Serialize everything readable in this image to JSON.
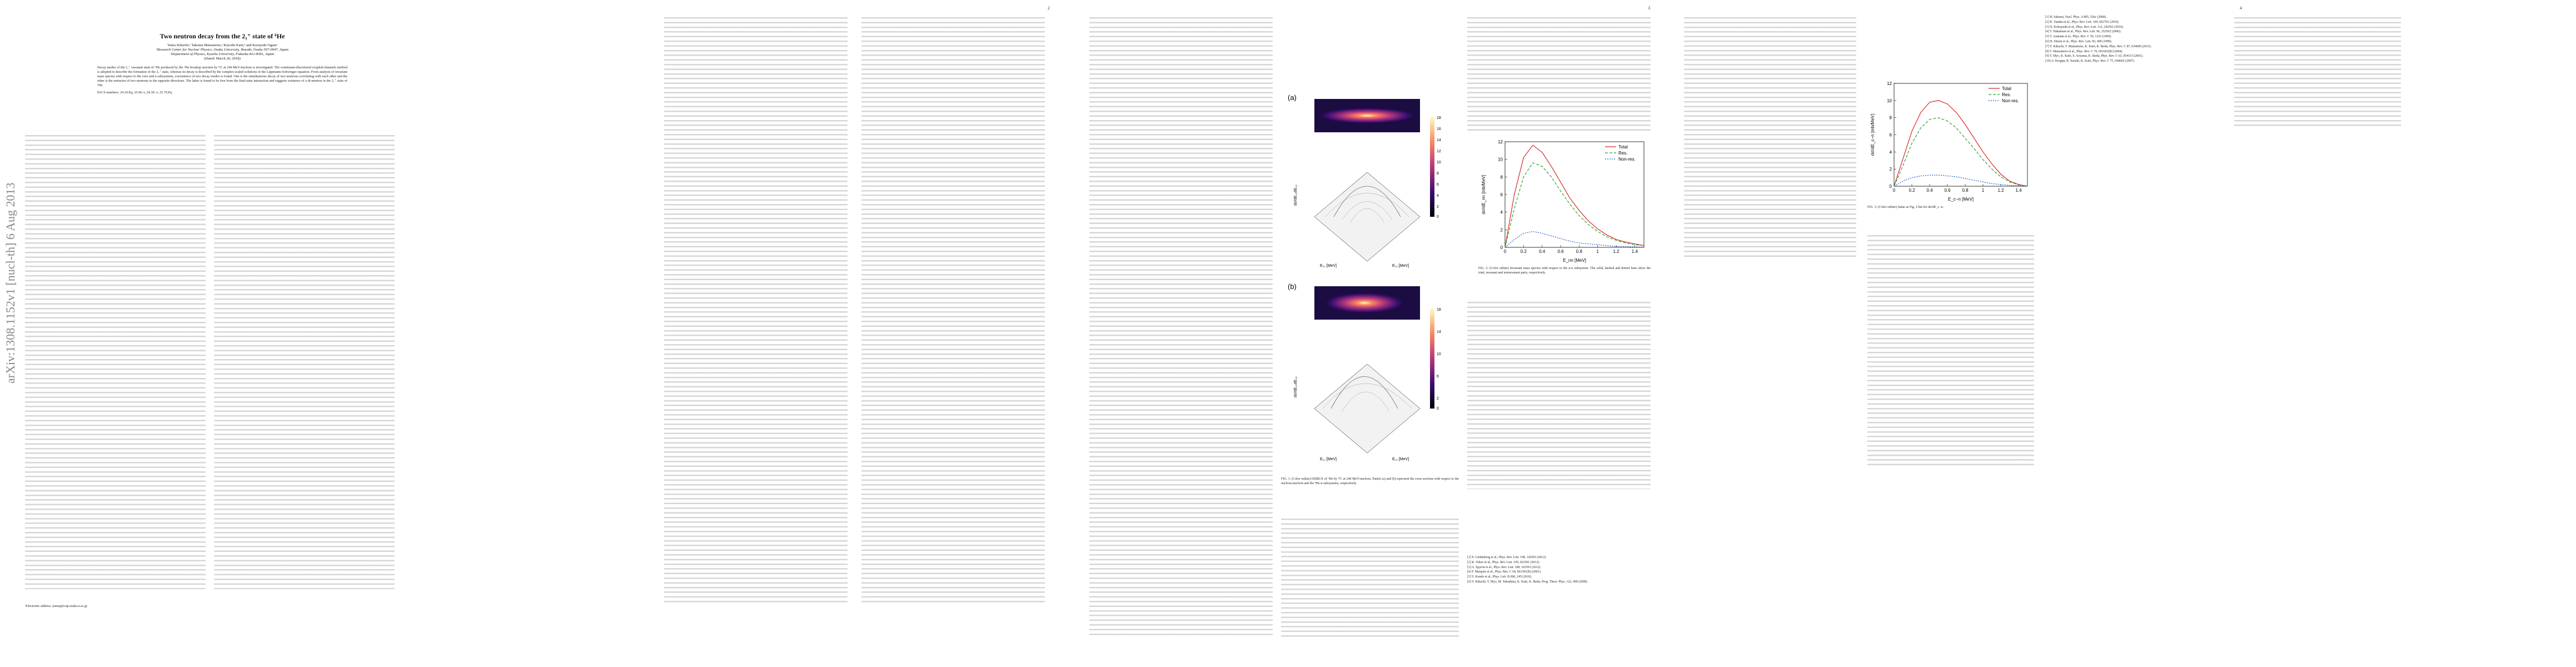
{
  "arxiv_stamp": "arXiv:1308.1152v1  [nucl-th]  6 Aug 2013",
  "page_numbers": [
    "2",
    "3",
    "4"
  ],
  "title": "Two neutron decay from the 2₁⁺ state of ⁶He",
  "authors": "Yuma Kikuchi,¹ Takuma Matsumoto,² Kiyoshi Katō,³ and Kazuyuki Ogata¹",
  "affiliations": [
    "¹Research Center for Nuclear Physics, Osaka University, Ibaraki, Osaka 567-0047, Japan",
    "²Department of Physics, Kyushu University, Fukuoka 812-8581, Japan",
    "(Dated: March 20, 2018)"
  ],
  "abstract": "Decay modes of the 2₁⁺ resonant state of ⁶He produced by the ⁶He breakup reaction by ¹²C at 240 MeV/nucleon is investigated. The continuum-discretized coupled-channels method is adopted to describe the formation of the 2₁⁺ state, whereas its decay is described by the complex-scaled solutions of the Lippmann-Schwinger equation. From analysis of invariant mass spectra with respect to the core and n subsystems, coexistence of two decay modes is found. One is the simultaneous decay of two neutrons correlating with each other and the other is the emission of two neutrons to the opposite directions. The latter is found to be free from the final-state interaction and suggests existence of a di-neutron in the 2₁⁺ state of ⁶He.",
  "pacs": "PACS numbers: 24.10.Eq, 25.60.-t, 24.30.-v, 25.70.Pq",
  "footnote": "¹Electronic address: yuma@rcnp.osaka-u.ac.jp",
  "fig1": {
    "panel_a": "(a)",
    "panel_b": "(b)",
    "colorbar_a": [
      "18",
      "16",
      "14",
      "12",
      "10",
      "8",
      "6",
      "4",
      "2",
      "0"
    ],
    "colorbar_b": [
      "18",
      "16",
      "14",
      "12",
      "10",
      "8",
      "6",
      "4",
      "2",
      "0"
    ],
    "zlabel": "dσ/dE₁₂dE₁₃",
    "xlabel": "E₁₂ [MeV]",
    "ylabel": "E₁₃ [MeV]",
    "caption": "FIG. 1: (Color online) DDBUX of ⁶He by ¹²C at 240 MeV/nucleon. Panels (a) and (b) represent the cross sections with respect to the nucleon-nucleon and the ⁴He-n subsystems, respectively."
  },
  "fig2": {
    "ylabel": "dσ/dE_nn [mb/MeV]",
    "xlabel": "E_nn [MeV]",
    "legend": [
      "Total",
      "Res.",
      "Non-res."
    ],
    "caption": "FIG. 2: (Color online) Invariant mass spectra with respect to the n-n subsystem. The solid, dashed and dotted lines show the total, resonant and nonresonant parts, respectively.",
    "xticks": [
      "0",
      "0.2",
      "0.4",
      "0.6",
      "0.8",
      "1",
      "1.2",
      "1.4"
    ],
    "yticks": [
      "0",
      "2",
      "4",
      "6",
      "8",
      "10",
      "12"
    ]
  },
  "fig3": {
    "ylabel": "dσ/dE_c−n [mb/MeV]",
    "xlabel": "E_c−n [MeV]",
    "legend": [
      "Total",
      "Res.",
      "Non-res."
    ],
    "caption": "FIG. 3: (Color online) Same as Fig. 2 but for dσ/dE_c−n.",
    "xticks": [
      "0",
      "0.2",
      "0.4",
      "0.6",
      "0.8",
      "1",
      "1.2",
      "1.4"
    ],
    "yticks": [
      "0",
      "2",
      "4",
      "6",
      "8",
      "10",
      "12"
    ]
  },
  "colors": {
    "total": "#d62728",
    "res": "#2ca02c",
    "nonres": "#1f5fbf",
    "text": "#222222"
  },
  "chart_data": [
    {
      "type": "line",
      "title": "",
      "xlabel": "E_nn [MeV]",
      "ylabel": "dσ/dE_nn [mb/MeV]",
      "xlim": [
        0,
        1.5
      ],
      "ylim": [
        0,
        12
      ],
      "x": [
        0,
        0.1,
        0.2,
        0.3,
        0.4,
        0.5,
        0.6,
        0.7,
        0.8,
        0.9,
        1.0,
        1.1,
        1.2,
        1.3,
        1.4,
        1.5
      ],
      "series": [
        {
          "name": "Total",
          "values": [
            0,
            6.0,
            10.2,
            11.6,
            10.8,
            9.2,
            7.4,
            5.6,
            4.2,
            3.0,
            2.1,
            1.4,
            0.9,
            0.6,
            0.4,
            0.2
          ]
        },
        {
          "name": "Res.",
          "values": [
            0,
            4.4,
            8.0,
            9.6,
            9.2,
            8.0,
            6.4,
            4.9,
            3.6,
            2.6,
            1.8,
            1.2,
            0.8,
            0.5,
            0.3,
            0.2
          ]
        },
        {
          "name": "Non-res.",
          "values": [
            0,
            0.9,
            1.6,
            1.8,
            1.6,
            1.3,
            1.0,
            0.7,
            0.5,
            0.4,
            0.3,
            0.2,
            0.1,
            0.1,
            0.05,
            0.03
          ]
        }
      ]
    },
    {
      "type": "line",
      "title": "",
      "xlabel": "E_c−n [MeV]",
      "ylabel": "dσ/dE_c−n [mb/MeV]",
      "xlim": [
        0,
        1.5
      ],
      "ylim": [
        0,
        12
      ],
      "x": [
        0,
        0.1,
        0.2,
        0.3,
        0.4,
        0.5,
        0.6,
        0.7,
        0.8,
        0.9,
        1.0,
        1.1,
        1.2,
        1.3,
        1.4,
        1.5
      ],
      "series": [
        {
          "name": "Total",
          "values": [
            0,
            3.2,
            6.4,
            8.6,
            9.8,
            10.0,
            9.6,
            8.6,
            7.2,
            5.6,
            4.0,
            2.6,
            1.4,
            0.6,
            0.2,
            0
          ]
        },
        {
          "name": "Res.",
          "values": [
            0,
            2.4,
            5.0,
            6.8,
            7.8,
            8.0,
            7.6,
            6.8,
            5.6,
            4.4,
            3.1,
            2.0,
            1.1,
            0.5,
            0.15,
            0
          ]
        },
        {
          "name": "Non-res.",
          "values": [
            0,
            0.6,
            1.0,
            1.2,
            1.3,
            1.3,
            1.2,
            1.1,
            0.9,
            0.7,
            0.5,
            0.3,
            0.2,
            0.1,
            0.05,
            0
          ]
        }
      ]
    }
  ],
  "refs_page4_right": [
    "[1] H. Sakurai, Nucl. Phys. A 805, 526c (2008).",
    "[2] K. Tanaka et al., Phys. Rev. Lett. 104, 062701 (2010).",
    "[3] N. Kobayashi et al., Phys. Rev. Lett. 112, 242501 (2014).",
    "[4] T. Nakamura et al., Phys. Rev. Lett. 96, 252502 (2006).",
    "[5] T. Aumann et al., Phys. Rev. C 59, 1252 (1999).",
    "[6] H. Simon et al., Phys. Rev. Lett. 83, 496 (1999).",
    "[7] Y. Kikuchi, T. Matsumoto, K. Katō, K. Ikeda, Phys. Rev. C 87, 034606 (2013).",
    "[8] T. Matsumoto et al., Phys. Rev. C 70, 061601(R) (2004).",
    "[9] T. Myo, K. Katō, S. Aoyama, K. Ikeda, Phys. Rev. C 63, 054313 (2001).",
    "[10] A. Kruppa, R. Suzuki, K. Katō, Phys. Rev. C 75, 044602 (2007)."
  ],
  "refs_page3_bottom": [
    "[1] E. Lindenberg et al., Phys. Rev. Lett. 108, 142503 (2012).",
    "[2] K. Tshoo et al., Phys. Rev. Lett. 109, 022501 (2012).",
    "[3] A. Spyrou et al., Phys. Rev. Lett. 108, 102501 (2012).",
    "[4] F. Marqués et al., Phys. Rev. C 64, 061301(R) (2001).",
    "[5] Y. Kondo et al., Phys. Lett. B 690, 245 (2010).",
    "[6] Y. Kikuchi, T. Myo, M. Takashina, K. Katō, K. Ikeda, Prog. Theor. Phys. 122, 499 (2009)."
  ]
}
